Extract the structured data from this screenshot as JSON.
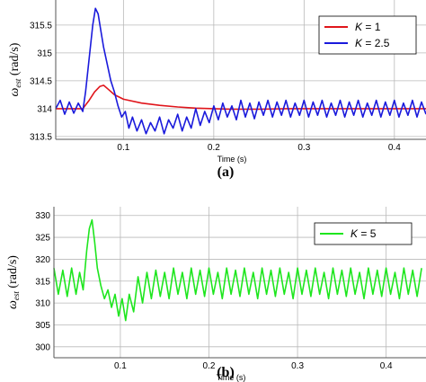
{
  "chart_data": [
    {
      "type": "line",
      "panel_label": "(a)",
      "ylabel_symbol": "ω",
      "ylabel_sub": "est",
      "ylabel_unit": " (rad/s)",
      "xlabel": "Time (s)",
      "xlim": [
        0.025,
        0.435
      ],
      "ylim": [
        313.45,
        315.95
      ],
      "xticks": [
        0.1,
        0.2,
        0.3,
        0.4
      ],
      "xtick_labels": [
        "0.1",
        "0.2",
        "0.3",
        "0.4"
      ],
      "yticks": [
        313.5,
        314,
        314.5,
        315,
        315.5
      ],
      "ytick_labels": [
        "313.5",
        "314",
        "314.5",
        "315",
        "315.5"
      ],
      "grid": true,
      "legend_position": "top-right",
      "series": [
        {
          "name_italic": "K",
          "name_rest": " = 1",
          "color": "#e0151b",
          "x": [
            0.025,
            0.055,
            0.062,
            0.068,
            0.074,
            0.078,
            0.083,
            0.09,
            0.1,
            0.12,
            0.14,
            0.16,
            0.18,
            0.2,
            0.22,
            0.25,
            0.28,
            0.3,
            0.35,
            0.4,
            0.435
          ],
          "y": [
            314.0,
            314.0,
            314.15,
            314.3,
            314.4,
            314.42,
            314.35,
            314.25,
            314.17,
            314.1,
            314.06,
            314.03,
            314.01,
            314.0,
            313.99,
            313.99,
            314.0,
            314.0,
            314.0,
            314.0,
            314.0
          ]
        },
        {
          "name_italic": "K",
          "name_rest": " = 2.5",
          "color": "#1a1adc",
          "x": [
            0.025,
            0.03,
            0.035,
            0.04,
            0.045,
            0.05,
            0.055,
            0.058,
            0.062,
            0.066,
            0.069,
            0.072,
            0.075,
            0.078,
            0.082,
            0.086,
            0.09,
            0.094,
            0.098,
            0.102,
            0.106,
            0.11,
            0.115,
            0.12,
            0.125,
            0.13,
            0.135,
            0.14,
            0.145,
            0.15,
            0.155,
            0.16,
            0.165,
            0.17,
            0.175,
            0.18,
            0.185,
            0.19,
            0.195,
            0.2,
            0.205,
            0.21,
            0.215,
            0.22,
            0.225,
            0.23,
            0.235,
            0.24,
            0.245,
            0.25,
            0.255,
            0.26,
            0.265,
            0.27,
            0.275,
            0.28,
            0.285,
            0.29,
            0.295,
            0.3,
            0.305,
            0.31,
            0.315,
            0.32,
            0.325,
            0.33,
            0.335,
            0.34,
            0.345,
            0.35,
            0.355,
            0.36,
            0.365,
            0.37,
            0.375,
            0.38,
            0.385,
            0.39,
            0.395,
            0.4,
            0.405,
            0.41,
            0.415,
            0.42,
            0.425,
            0.43,
            0.435
          ],
          "y": [
            314.0,
            314.15,
            313.9,
            314.12,
            313.92,
            314.1,
            313.95,
            314.3,
            314.9,
            315.5,
            315.8,
            315.7,
            315.4,
            315.1,
            314.8,
            314.5,
            314.3,
            314.05,
            313.85,
            313.95,
            313.65,
            313.85,
            313.6,
            313.8,
            313.55,
            313.75,
            313.6,
            313.85,
            313.55,
            313.8,
            313.65,
            313.9,
            313.6,
            313.85,
            313.65,
            314.0,
            313.7,
            313.95,
            313.75,
            314.05,
            313.8,
            314.1,
            313.85,
            314.05,
            313.8,
            314.15,
            313.85,
            314.1,
            313.82,
            314.12,
            313.88,
            314.15,
            313.85,
            314.12,
            313.88,
            314.15,
            313.85,
            314.1,
            313.88,
            314.15,
            313.85,
            314.12,
            313.88,
            314.15,
            313.85,
            314.1,
            313.88,
            314.15,
            313.85,
            314.12,
            313.88,
            314.15,
            313.85,
            314.1,
            313.88,
            314.15,
            313.85,
            314.12,
            313.88,
            314.15,
            313.85,
            314.1,
            313.88,
            314.15,
            313.85,
            314.12,
            313.9
          ]
        }
      ]
    },
    {
      "type": "line",
      "panel_label": "(b)",
      "ylabel_symbol": "ω",
      "ylabel_sub": "est",
      "ylabel_unit": " (rad/s)",
      "xlabel": "Time (s)",
      "xlim": [
        0.025,
        0.445
      ],
      "ylim": [
        297.5,
        332
      ],
      "xticks": [
        0.1,
        0.2,
        0.3,
        0.4
      ],
      "xtick_labels": [
        "0.1",
        "0.2",
        "0.3",
        "0.4"
      ],
      "yticks": [
        300,
        305,
        310,
        315,
        320,
        325,
        330
      ],
      "ytick_labels": [
        "300",
        "305",
        "310",
        "315",
        "320",
        "325",
        "330"
      ],
      "grid": true,
      "legend_position": "top-right",
      "series": [
        {
          "name_italic": "K",
          "name_rest": " = 5",
          "color": "#1ee61e",
          "x": [
            0.025,
            0.03,
            0.035,
            0.04,
            0.045,
            0.05,
            0.054,
            0.058,
            0.062,
            0.065,
            0.068,
            0.071,
            0.074,
            0.078,
            0.082,
            0.086,
            0.09,
            0.094,
            0.098,
            0.102,
            0.106,
            0.11,
            0.115,
            0.12,
            0.125,
            0.13,
            0.135,
            0.14,
            0.145,
            0.15,
            0.155,
            0.16,
            0.165,
            0.17,
            0.175,
            0.18,
            0.185,
            0.19,
            0.195,
            0.2,
            0.205,
            0.21,
            0.215,
            0.22,
            0.225,
            0.23,
            0.235,
            0.24,
            0.245,
            0.25,
            0.255,
            0.26,
            0.265,
            0.27,
            0.275,
            0.28,
            0.285,
            0.29,
            0.295,
            0.3,
            0.305,
            0.31,
            0.315,
            0.32,
            0.325,
            0.33,
            0.335,
            0.34,
            0.345,
            0.35,
            0.355,
            0.36,
            0.365,
            0.37,
            0.375,
            0.38,
            0.385,
            0.39,
            0.395,
            0.4,
            0.405,
            0.41,
            0.415,
            0.42,
            0.425,
            0.43,
            0.435,
            0.44
          ],
          "y": [
            318.0,
            312.0,
            317.5,
            311.5,
            318.0,
            312.0,
            317.0,
            313.0,
            322.0,
            327.0,
            329.0,
            324.0,
            318.0,
            314.0,
            311.0,
            313.0,
            309.0,
            312.0,
            307.0,
            311.0,
            306.0,
            312.0,
            308.0,
            316.0,
            310.0,
            317.0,
            311.0,
            317.5,
            311.5,
            317.0,
            311.0,
            318.0,
            312.0,
            317.0,
            311.0,
            318.0,
            312.0,
            317.5,
            311.5,
            318.0,
            312.0,
            317.0,
            311.0,
            318.0,
            312.0,
            317.5,
            311.5,
            318.0,
            312.0,
            317.0,
            311.0,
            318.0,
            312.0,
            317.5,
            311.5,
            318.0,
            312.0,
            317.0,
            311.0,
            318.0,
            312.0,
            317.5,
            311.5,
            318.0,
            312.0,
            317.0,
            311.0,
            318.0,
            312.0,
            317.5,
            311.5,
            318.0,
            312.0,
            317.0,
            311.0,
            318.0,
            312.0,
            317.5,
            311.5,
            318.0,
            312.0,
            317.0,
            311.0,
            318.0,
            312.0,
            317.5,
            311.5,
            318.0
          ]
        }
      ]
    }
  ]
}
